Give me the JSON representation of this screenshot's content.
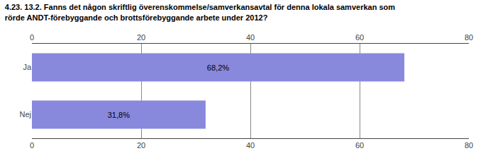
{
  "chart_data": {
    "type": "bar",
    "orientation": "horizontal",
    "title": "4.23. 13.2. Fanns det någon skriftlig överenskommelse/samverkansavtal för denna lokala samverkan som\nrörde ANDT-förebyggande och brottsförebyggande arbete under 2012?",
    "categories": [
      "Ja",
      "Nej"
    ],
    "values": [
      68.2,
      31.8
    ],
    "value_labels": [
      "68,2%",
      "31,8%"
    ],
    "data_labels": true,
    "color": "#8888dd",
    "xlim": [
      0,
      80
    ],
    "xticks": [
      0,
      20,
      40,
      60,
      80
    ],
    "grid": true
  }
}
